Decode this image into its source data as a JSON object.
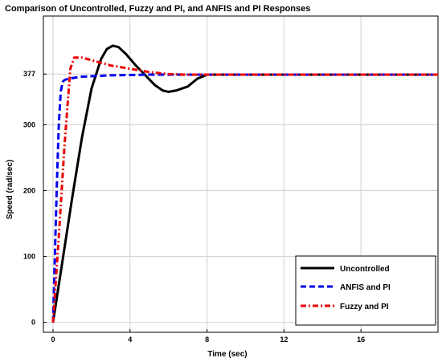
{
  "chart_data": {
    "type": "line",
    "title": "Comparison of Uncontrolled, Fuzzy and PI, and ANFIS and PI Responses",
    "xlabel": "Time (sec)",
    "ylabel": "Speed (rad/sec)",
    "xlim": [
      -0.5,
      20
    ],
    "ylim": [
      -15,
      465
    ],
    "xticks": [
      0,
      4,
      8,
      12,
      16
    ],
    "yticks": [
      0,
      100,
      200,
      300,
      377
    ],
    "grid": true,
    "legend_position": "bottom-right",
    "series": [
      {
        "name": "Uncontrolled",
        "color": "#000000",
        "style": "solid",
        "x": [
          0,
          0.5,
          1.0,
          1.5,
          2.0,
          2.5,
          2.8,
          3.1,
          3.4,
          3.8,
          4.3,
          4.8,
          5.3,
          5.7,
          6.0,
          6.4,
          7.0,
          7.5,
          8.0,
          10,
          12,
          14,
          16,
          18,
          20
        ],
        "y": [
          0,
          95,
          190,
          280,
          355,
          400,
          415,
          420,
          418,
          407,
          390,
          375,
          360,
          352,
          350,
          352,
          358,
          370,
          376,
          376,
          376,
          376,
          376,
          376,
          376
        ]
      },
      {
        "name": "ANFIS and PI",
        "color": "#0000ee",
        "style": "dashed",
        "x": [
          0,
          0.1,
          0.2,
          0.3,
          0.4,
          0.5,
          0.6,
          0.8,
          1.5,
          3,
          5,
          8,
          12,
          16,
          20
        ],
        "y": [
          0,
          105,
          210,
          300,
          350,
          365,
          368,
          370,
          373,
          375,
          376,
          376,
          376,
          376,
          376
        ]
      },
      {
        "name": "Fuzzy and PI",
        "color": "#ee0000",
        "style": "dashdot",
        "x": [
          0,
          0.3,
          0.6,
          0.9,
          1.1,
          1.5,
          2.0,
          3.0,
          4.0,
          5.0,
          6.0,
          7.0,
          8.0,
          12,
          16,
          20
        ],
        "y": [
          0,
          130,
          270,
          385,
          402,
          402,
          398,
          390,
          385,
          380,
          377,
          376,
          376,
          376,
          376,
          376
        ]
      }
    ]
  }
}
